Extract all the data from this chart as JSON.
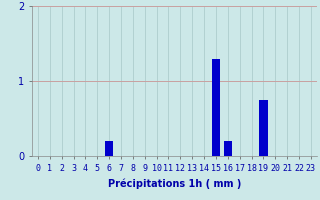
{
  "hours": [
    0,
    1,
    2,
    3,
    4,
    5,
    6,
    7,
    8,
    9,
    10,
    11,
    12,
    13,
    14,
    15,
    16,
    17,
    18,
    19,
    20,
    21,
    22,
    23
  ],
  "values": [
    0,
    0,
    0,
    0,
    0,
    0,
    0.2,
    0,
    0,
    0,
    0,
    0,
    0,
    0,
    0,
    1.3,
    0.2,
    0,
    0,
    0.75,
    0,
    0,
    0,
    0
  ],
  "bar_color": "#0000cc",
  "background_color": "#cce8e8",
  "grid_color_h": "#c8a0a0",
  "grid_color_v": "#a8c8c8",
  "xlabel": "Précipitations 1h ( mm )",
  "xlabel_color": "#0000aa",
  "tick_color": "#0000aa",
  "label_fontsize": 6.0,
  "xlabel_fontsize": 7.0,
  "ylim": [
    0,
    2
  ],
  "yticks": [
    0,
    1,
    2
  ],
  "xlim": [
    -0.5,
    23.5
  ]
}
